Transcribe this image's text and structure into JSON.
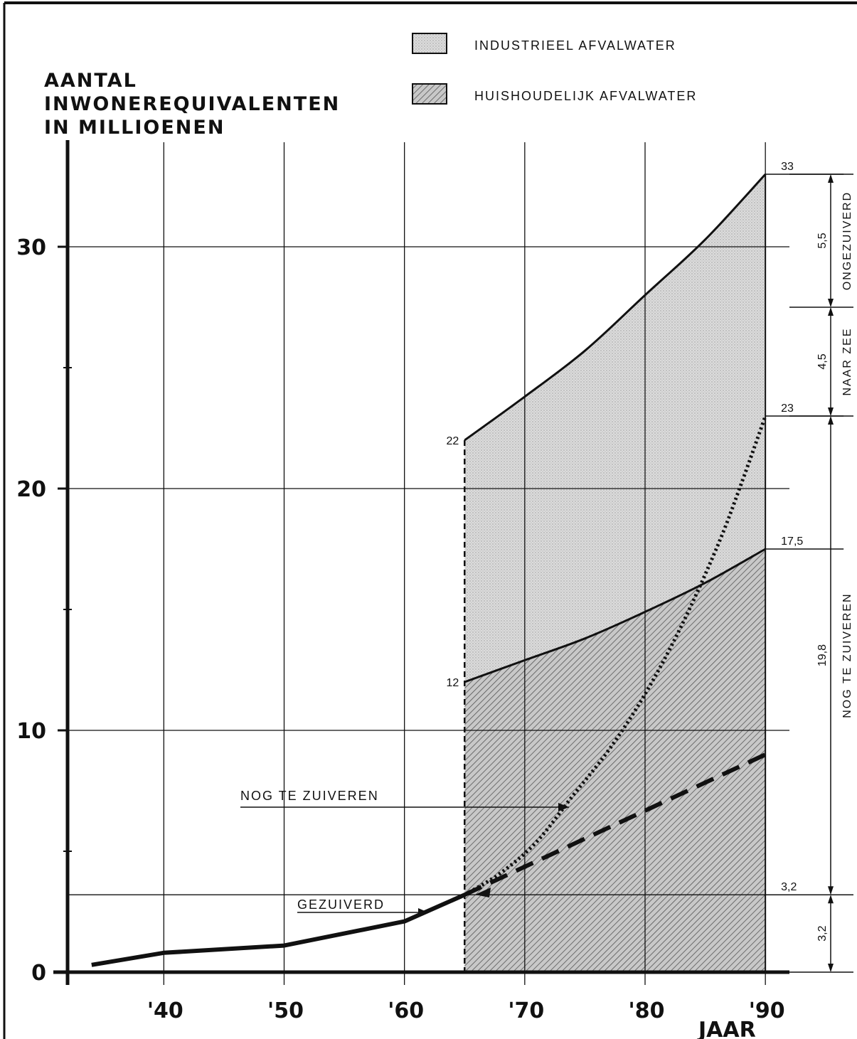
{
  "chart_data": {
    "type": "area",
    "ylabel": [
      "AANTAL",
      "INWONEREQUIVALENTEN",
      "IN MILLIOENEN"
    ],
    "xlabel": "JAAR",
    "ylim": [
      0,
      33
    ],
    "xlim": [
      1932,
      1992
    ],
    "y_ticks": [
      {
        "value": 0,
        "label": "0"
      },
      {
        "value": 10,
        "label": "10"
      },
      {
        "value": 20,
        "label": "20"
      },
      {
        "value": 30,
        "label": "30"
      }
    ],
    "x_ticks": [
      {
        "value": 1940,
        "label": "'40"
      },
      {
        "value": 1950,
        "label": "'50"
      },
      {
        "value": 1960,
        "label": "'60"
      },
      {
        "value": 1970,
        "label": "'70"
      },
      {
        "value": 1980,
        "label": "'80"
      },
      {
        "value": 1990,
        "label": "'90"
      }
    ],
    "legend": [
      {
        "name": "INDUSTRIEEL AFVALWATER",
        "fill": "#d2d2d2"
      },
      {
        "name": "HUISHOUDELIJK AFVALWATER",
        "fill": "#b4b4b4"
      }
    ],
    "series": [
      {
        "key": "totaal",
        "x": [
          1965,
          1970,
          1975,
          1980,
          1985,
          1990
        ],
        "y": [
          22,
          23.8,
          25.7,
          28,
          30.3,
          33
        ]
      },
      {
        "key": "huishoudelijk",
        "x": [
          1965,
          1970,
          1975,
          1980,
          1985,
          1990
        ],
        "y": [
          12,
          12.9,
          13.8,
          14.9,
          16.1,
          17.5
        ]
      },
      {
        "key": "gezuiverd",
        "x": [
          1934,
          1940,
          1950,
          1960,
          1965
        ],
        "y": [
          0.3,
          0.8,
          1.1,
          2.1,
          3.2
        ]
      },
      {
        "key": "gezuiverd-dashed",
        "x": [
          1965,
          1990
        ],
        "y": [
          3.2,
          9
        ]
      },
      {
        "key": "gezuiverd-dotted",
        "x": [
          1965,
          1968,
          1971,
          1974,
          1977,
          1980,
          1983,
          1986,
          1988,
          1990
        ],
        "y": [
          3.2,
          4.1,
          5.4,
          7.3,
          9.2,
          11.5,
          14.3,
          17.6,
          20.2,
          23
        ]
      }
    ],
    "value_labels": [
      {
        "text": "22",
        "x": 1965,
        "y": 22,
        "side": "left"
      },
      {
        "text": "12",
        "x": 1965,
        "y": 12,
        "side": "left"
      },
      {
        "text": "33",
        "x": 1990,
        "y": 33,
        "side": "right"
      },
      {
        "text": "23",
        "x": 1990,
        "y": 23,
        "side": "right"
      },
      {
        "text": "17,5",
        "x": 1990,
        "y": 17.5,
        "side": "right"
      },
      {
        "text": "3,2",
        "x": 1990,
        "y": 3.2,
        "side": "right"
      }
    ],
    "annotations": [
      {
        "text": "NOG TE ZUIVEREN",
        "x": 1956,
        "y": 6.8
      },
      {
        "text": "GEZUIVERD",
        "x": 1958,
        "y": 2.5
      }
    ],
    "right_brackets": [
      {
        "from": 27.5,
        "to": 33,
        "value": "5,5",
        "label": "ONGEZUIVERD"
      },
      {
        "from": 23,
        "to": 27.5,
        "value": "4,5",
        "label": "NAAR ZEE"
      },
      {
        "from": 3.2,
        "to": 23,
        "value": "19,8",
        "label": "NOG TE ZUIVEREN"
      },
      {
        "from": 0,
        "to": 3.2,
        "value": "3,2",
        "label": ""
      }
    ]
  }
}
